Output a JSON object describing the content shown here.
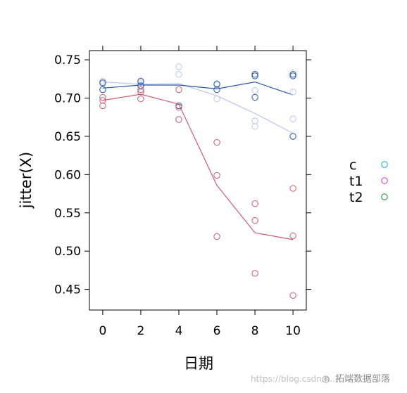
{
  "chart_data": {
    "type": "scatter",
    "xlabel": "日期",
    "ylabel": "jitter(X)",
    "xlim": [
      -0.7,
      10.7
    ],
    "ylim": [
      0.423,
      0.762
    ],
    "x_ticks": [
      0,
      2,
      4,
      6,
      8,
      10
    ],
    "y_ticks": [
      0.45,
      0.5,
      0.55,
      0.6,
      0.65,
      0.7,
      0.75
    ],
    "y_tick_labels": [
      "0.45",
      "0.50",
      "0.55",
      "0.60",
      "0.65",
      "0.70",
      "0.75"
    ],
    "legend_position": "right",
    "legend": [
      {
        "name": "c",
        "color": "#1fa7d6"
      },
      {
        "name": "t1",
        "color": "#d43ad9"
      },
      {
        "name": "t2",
        "color": "#1e8b2a"
      }
    ],
    "series": [
      {
        "name": "light-blue",
        "color": "#b4c8eb",
        "points": [
          [
            0,
            0.722
          ],
          [
            0,
            0.719
          ],
          [
            2,
            0.72
          ],
          [
            2,
            0.717
          ],
          [
            4,
            0.741
          ],
          [
            4,
            0.731
          ],
          [
            4,
            0.69
          ],
          [
            6,
            0.719
          ],
          [
            6,
            0.699
          ],
          [
            8,
            0.71
          ],
          [
            8,
            0.67
          ],
          [
            8,
            0.663
          ],
          [
            10,
            0.708
          ],
          [
            10,
            0.673
          ],
          [
            10,
            0.65
          ]
        ],
        "trend": [
          [
            0,
            0.721
          ],
          [
            2,
            0.718
          ],
          [
            4,
            0.719
          ],
          [
            6,
            0.703
          ],
          [
            8,
            0.68
          ],
          [
            10,
            0.654
          ]
        ]
      },
      {
        "name": "dark-blue",
        "color": "#2a55a8",
        "points": [
          [
            0,
            0.72
          ],
          [
            0,
            0.711
          ],
          [
            2,
            0.722
          ],
          [
            2,
            0.716
          ],
          [
            4,
            0.69
          ],
          [
            6,
            0.718
          ],
          [
            6,
            0.711
          ],
          [
            8,
            0.731
          ],
          [
            8,
            0.729
          ],
          [
            8,
            0.701
          ],
          [
            10,
            0.731
          ],
          [
            10,
            0.729
          ],
          [
            10,
            0.65
          ]
        ],
        "trend": [
          [
            0,
            0.713
          ],
          [
            2,
            0.717
          ],
          [
            4,
            0.717
          ],
          [
            6,
            0.712
          ],
          [
            8,
            0.721
          ],
          [
            10,
            0.704
          ]
        ]
      },
      {
        "name": "red",
        "color": "#d05a6e",
        "points": [
          [
            0,
            0.701
          ],
          [
            0,
            0.697
          ],
          [
            0,
            0.69
          ],
          [
            2,
            0.711
          ],
          [
            2,
            0.708
          ],
          [
            2,
            0.699
          ],
          [
            4,
            0.711
          ],
          [
            4,
            0.688
          ],
          [
            4,
            0.672
          ],
          [
            6,
            0.642
          ],
          [
            6,
            0.599
          ],
          [
            6,
            0.519
          ],
          [
            8,
            0.562
          ],
          [
            8,
            0.54
          ],
          [
            8,
            0.471
          ],
          [
            10,
            0.582
          ],
          [
            10,
            0.52
          ],
          [
            10,
            0.442
          ]
        ],
        "trend": [
          [
            0,
            0.697
          ],
          [
            2,
            0.705
          ],
          [
            4,
            0.692
          ],
          [
            6,
            0.586
          ],
          [
            8,
            0.524
          ],
          [
            10,
            0.515
          ]
        ]
      }
    ]
  },
  "watermark": {
    "url": "https://blog.csdn.n...",
    "brand": "拓端数据部落"
  }
}
